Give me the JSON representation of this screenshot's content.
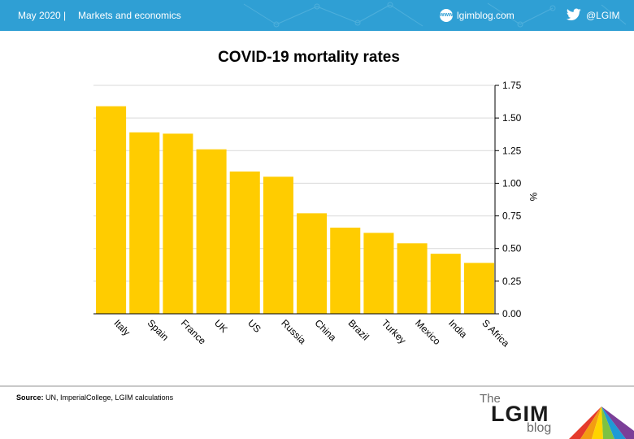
{
  "header": {
    "date": "May 2020",
    "separator": "|",
    "section": "Markets and economics",
    "website": "lgimblog.com",
    "website_icon_text": "www",
    "twitter": "@LGIM",
    "background_color": "#2f9fd4"
  },
  "source": {
    "label": "Source:",
    "text": "UN, ImperialCollege, LGIM calculations"
  },
  "logo": {
    "the": "The",
    "name": "LGIM",
    "blog": "blog"
  },
  "chart_data": {
    "type": "bar",
    "title": "COVID-19 mortality rates",
    "ylabel": "%",
    "xlabel": "",
    "categories": [
      "Italy",
      "Spain",
      "France",
      "UK",
      "US",
      "Russia",
      "China",
      "Brazil",
      "Turkey",
      "Mexico",
      "India",
      "S Africa"
    ],
    "values": [
      1.59,
      1.39,
      1.38,
      1.26,
      1.09,
      1.05,
      0.77,
      0.66,
      0.62,
      0.54,
      0.46,
      0.39
    ],
    "ylim": [
      0,
      1.75
    ],
    "yticks": [
      "0.00",
      "0.25",
      "0.50",
      "0.75",
      "1.00",
      "1.25",
      "1.50",
      "1.75"
    ],
    "y_axis_position": "right",
    "grid": true,
    "bar_color": "#ffcc00"
  }
}
